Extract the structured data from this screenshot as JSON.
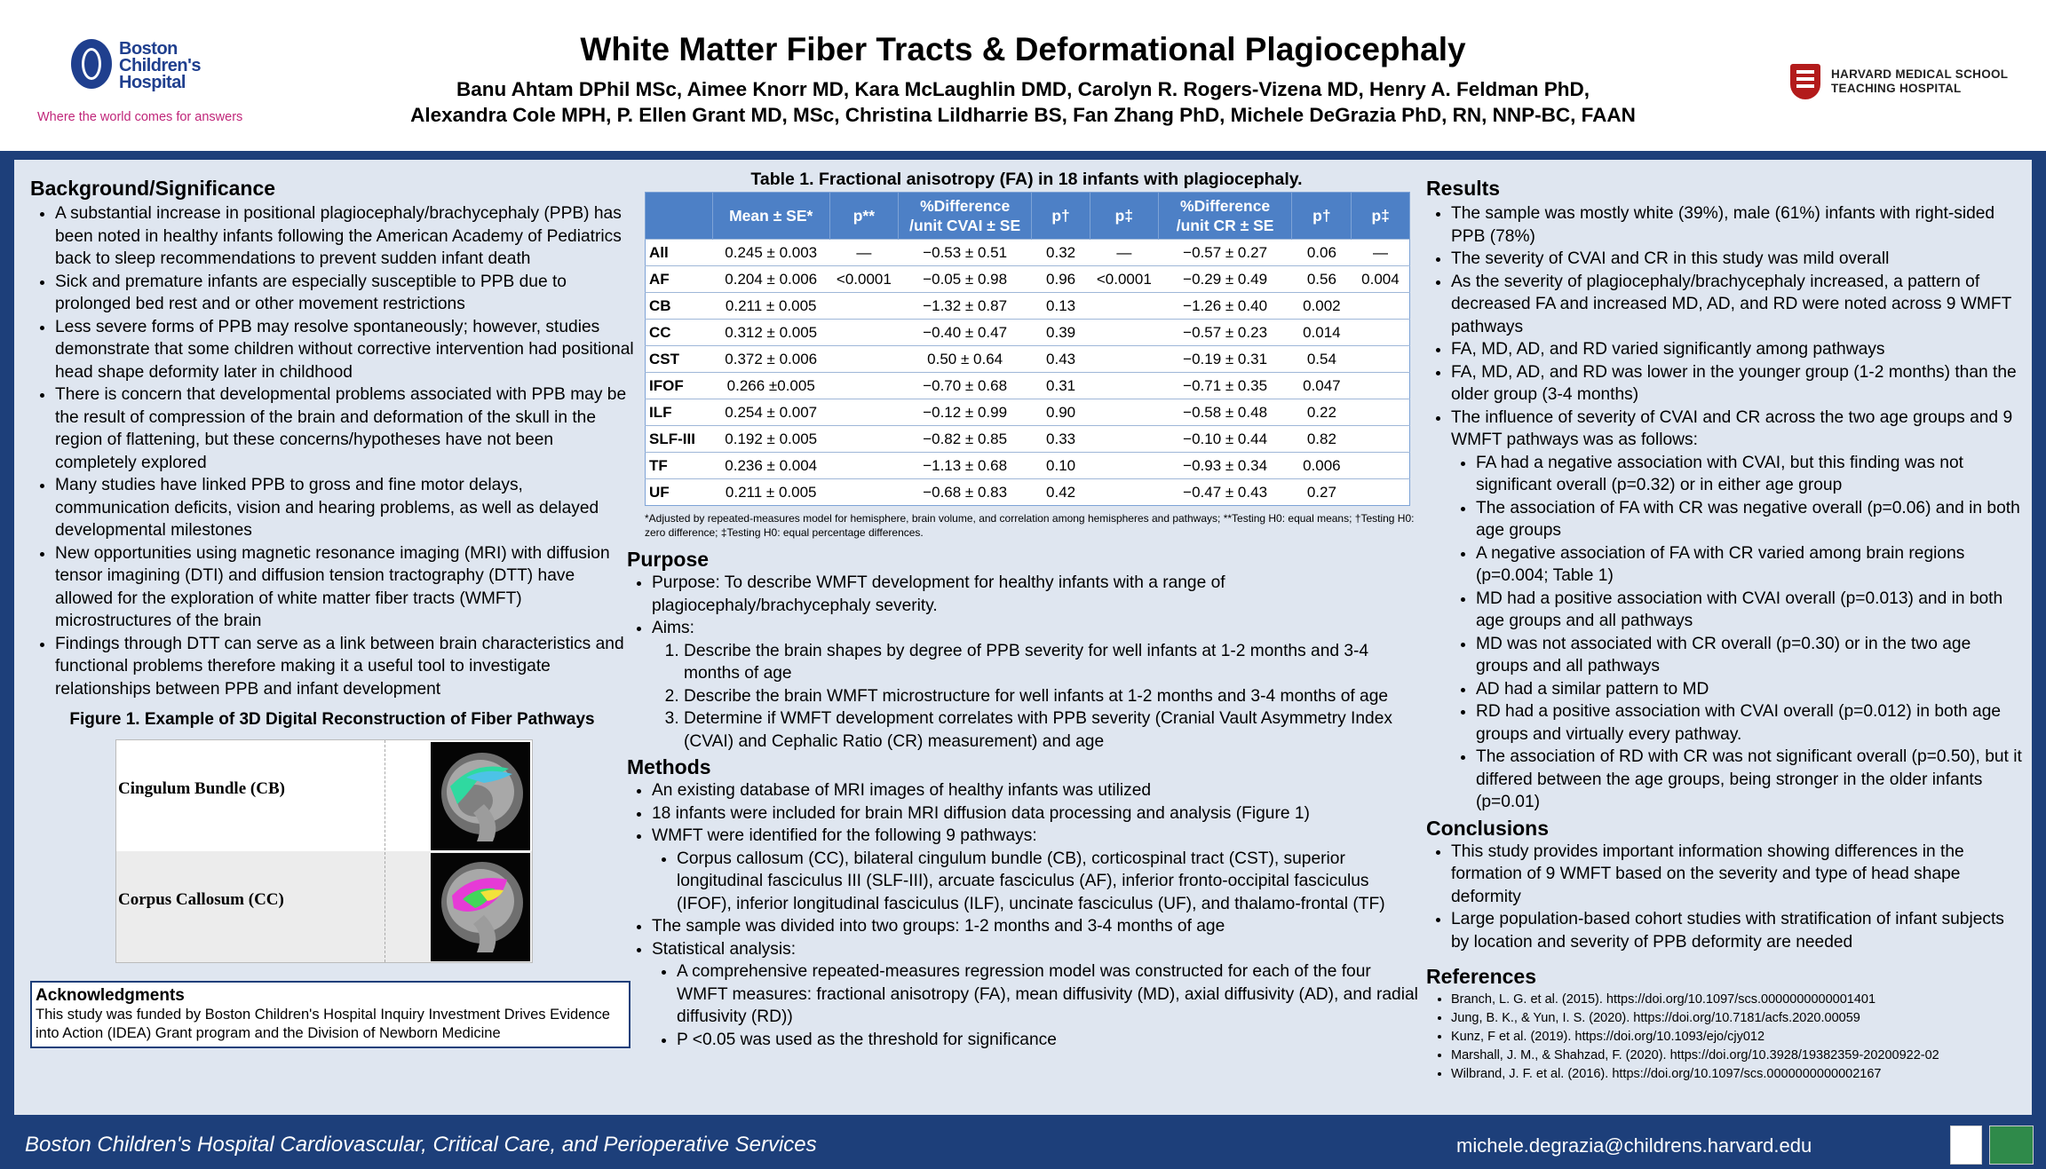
{
  "header": {
    "title": "White Matter Fiber Tracts & Deformational Plagiocephaly",
    "authors_line1": "Banu Ahtam DPhil MSc, Aimee Knorr MD, Kara McLaughlin DMD, Carolyn R. Rogers-Vizena MD, Henry A. Feldman PhD,",
    "authors_line2": "Alexandra Cole MPH, P. Ellen Grant MD, MSc, Christina Lildharrie BS, Fan Zhang PhD, Michele DeGrazia PhD, RN, NNP-BC, FAAN",
    "logo_left_line1": "Boston",
    "logo_left_line2": "Children's",
    "logo_left_line3": "Hospital",
    "logo_left_tagline": "Where the world comes for answers",
    "logo_right_line1": "HARVARD MEDICAL SCHOOL",
    "logo_right_line2": "TEACHING HOSPITAL"
  },
  "background": {
    "heading": "Background/Significance",
    "items": [
      "A substantial increase in positional plagiocephaly/brachycephaly (PPB) has been noted in healthy infants following the American Academy of Pediatrics back to sleep recommendations to prevent sudden infant death",
      "Sick and premature infants are especially susceptible to PPB due to prolonged bed rest and or other movement restrictions",
      "Less severe forms of PPB may resolve spontaneously; however, studies demonstrate that some children without corrective intervention had positional head shape deformity later in childhood",
      "There is concern that developmental problems associated with PPB may be the result of compression of the brain and deformation of the skull in the region of flattening, but these concerns/hypotheses have not been completely explored",
      "Many studies have linked PPB to gross and fine motor delays, communication deficits, vision and hearing problems, as well as delayed developmental milestones",
      "New opportunities using magnetic resonance imaging (MRI) with diffusion tensor imagining (DTI) and diffusion tension tractography (DTT) have allowed for the exploration of white matter fiber tracts (WMFT) microstructures of the brain",
      "Findings through DTT can serve as a link between brain characteristics and functional problems therefore making it a useful tool to investigate relationships between PPB and infant development"
    ]
  },
  "figure": {
    "title": "Figure 1. Example of 3D Digital Reconstruction of Fiber Pathways",
    "label1": "Cingulum Bundle (CB)",
    "label2": "Corpus Callosum (CC)"
  },
  "acknowledgments": {
    "heading": "Acknowledgments",
    "text": "This study was funded by Boston Children's Hospital Inquiry Investment Drives Evidence into Action (IDEA) Grant program and the Division of Newborn Medicine"
  },
  "table": {
    "title": "Table 1. Fractional anisotropy (FA) in 18 infants with plagiocephaly.",
    "headers": [
      "",
      "Mean ± SE*",
      "p**",
      "%Difference /unit CVAI ± SE",
      "p†",
      "p‡",
      "%Difference /unit CR ± SE",
      "p†",
      "p‡"
    ],
    "rows": [
      [
        "All",
        "0.245 ± 0.003",
        "—",
        "−0.53 ± 0.51",
        "0.32",
        "—",
        "−0.57 ± 0.27",
        "0.06",
        "—"
      ],
      [
        "AF",
        "0.204 ± 0.006",
        "<0.0001",
        "−0.05 ± 0.98",
        "0.96",
        "<0.0001",
        "−0.29 ± 0.49",
        "0.56",
        "0.004"
      ],
      [
        "CB",
        "0.211 ± 0.005",
        "",
        "−1.32 ± 0.87",
        "0.13",
        "",
        "−1.26 ± 0.40",
        "0.002",
        ""
      ],
      [
        "CC",
        "0.312 ± 0.005",
        "",
        "−0.40 ± 0.47",
        "0.39",
        "",
        "−0.57 ± 0.23",
        "0.014",
        ""
      ],
      [
        "CST",
        "0.372 ± 0.006",
        "",
        "0.50 ± 0.64",
        "0.43",
        "",
        "−0.19 ± 0.31",
        "0.54",
        ""
      ],
      [
        "IFOF",
        "0.266 ±0.005",
        "",
        "−0.70 ± 0.68",
        "0.31",
        "",
        "−0.71 ± 0.35",
        "0.047",
        ""
      ],
      [
        "ILF",
        "0.254 ± 0.007",
        "",
        "−0.12 ± 0.99",
        "0.90",
        "",
        "−0.58 ± 0.48",
        "0.22",
        ""
      ],
      [
        "SLF-III",
        "0.192 ± 0.005",
        "",
        "−0.82 ± 0.85",
        "0.33",
        "",
        "−0.10 ± 0.44",
        "0.82",
        ""
      ],
      [
        "TF",
        "0.236 ± 0.004",
        "",
        "−1.13 ± 0.68",
        "0.10",
        "",
        "−0.93 ± 0.34",
        "0.006",
        ""
      ],
      [
        "UF",
        "0.211 ± 0.005",
        "",
        "−0.68 ± 0.83",
        "0.42",
        "",
        "−0.47 ± 0.43",
        "0.27",
        ""
      ]
    ],
    "note": "*Adjusted by repeated-measures model for hemisphere, brain volume, and correlation among hemispheres and pathways; **Testing H0: equal means; †Testing H0: zero difference; ‡Testing H0: equal percentage differences."
  },
  "purpose": {
    "heading": "Purpose",
    "item1": "Purpose: To describe WMFT development for healthy infants with a range of plagiocephaly/brachycephaly severity.",
    "item2": "Aims:",
    "aims": [
      "Describe the brain shapes by degree of PPB severity for well infants at 1-2 months and 3-4 months of age",
      "Describe the brain WMFT microstructure for well infants at 1-2 months and 3-4 months of age",
      "Determine if WMFT development correlates with PPB severity (Cranial Vault Asymmetry Index (CVAI) and Cephalic Ratio (CR) measurement) and age"
    ]
  },
  "methods": {
    "heading": "Methods",
    "item1": "An existing database of MRI images of healthy infants was utilized",
    "item2": "18 infants were included for brain MRI diffusion data processing and analysis (Figure 1)",
    "item3": "WMFT were identified for the following 9 pathways:",
    "pathways": "Corpus callosum (CC), bilateral cingulum bundle (CB), corticospinal tract (CST), superior longitudinal fasciculus III (SLF-III), arcuate fasciculus (AF), inferior fronto-occipital fasciculus (IFOF), inferior longitudinal fasciculus (ILF), uncinate fasciculus (UF), and thalamo-frontal (TF)",
    "item4": "The sample was divided into two groups: 1-2 months and 3-4 months of age",
    "item5": "Statistical analysis:",
    "stats1": "A comprehensive repeated-measures regression model was constructed for each of the four WMFT measures: fractional anisotropy (FA), mean diffusivity (MD), axial diffusivity (AD), and radial diffusivity (RD))",
    "stats2": "P <0.05 was used as the threshold for significance"
  },
  "results": {
    "heading": "Results",
    "item1": "The sample was mostly white (39%), male (61%) infants with right-sided PPB (78%)",
    "item2": "The severity of CVAI and CR in this study was mild overall",
    "item3": "As the severity of plagiocephaly/brachycephaly increased, a pattern of decreased FA and increased MD, AD, and RD were noted across 9 WMFT pathways",
    "item4": "FA, MD, AD, and RD varied significantly among pathways",
    "item5": "FA, MD, AD, and RD was lower in the younger group (1-2 months) than the older group (3-4 months)",
    "item6": "The influence of severity of CVAI and CR across the two age groups and 9 WMFT pathways was as follows:",
    "sub": [
      "FA had a negative association with CVAI, but this finding was not significant overall (p=0.32) or in either age group",
      "The association of FA with CR was negative overall (p=0.06) and in both age groups",
      "A negative association of FA with CR varied among brain regions (p=0.004; Table 1)",
      "MD had a positive association with CVAI overall (p=0.013) and in both age groups and all pathways",
      "MD was not associated with CR overall (p=0.30) or in the two age groups and all pathways",
      "AD had a similar pattern to MD",
      "RD had a positive association with CVAI overall (p=0.012) in both age groups and virtually every pathway.",
      "The association of RD with CR was not significant overall (p=0.50), but it differed between the age groups, being stronger in the older infants (p=0.01)"
    ]
  },
  "conclusions": {
    "heading": "Conclusions",
    "items": [
      "This study provides important information showing differences in the formation of 9 WMFT based on the severity and type of head shape deformity",
      "Large population-based cohort studies with stratification of infant subjects by location and severity of PPB deformity are needed"
    ]
  },
  "references": {
    "heading": "References",
    "items": [
      "Branch, L. G. et al. (2015). https://doi.org/10.1097/scs.0000000000001401",
      "Jung, B. K., & Yun, I. S. (2020). https://doi.org/10.7181/acfs.2020.00059",
      "Kunz, F et al. (2019). https://doi.org/10.1093/ejo/cjy012",
      "Marshall, J. M., & Shahzad, F. (2020). https://doi.org/10.3928/19382359-20200922-02",
      "Wilbrand, J. F. et al. (2016). https://doi.org/10.1097/scs.0000000000002167"
    ]
  },
  "footer": {
    "left": "Boston Children's Hospital Cardiovascular, Critical Care, and Perioperative Services",
    "right": "michele.degrazia@childrens.harvard.edu"
  },
  "colors": {
    "navy": "#1d3f7a",
    "panel": "#dfe6f0",
    "table_header": "#4d80c6",
    "tagline_magenta": "#c0267a"
  }
}
